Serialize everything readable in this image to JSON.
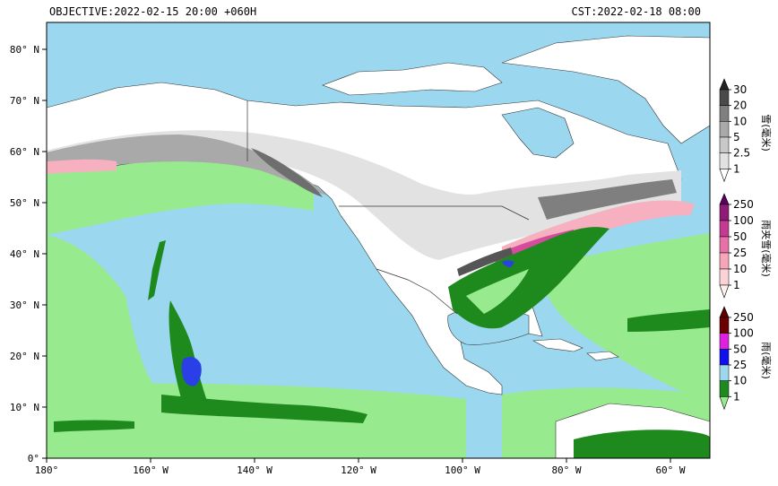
{
  "header": {
    "left": "OBJECTIVE:2022-02-15 20:00 +060H",
    "right": "CST:2022-02-18 08:00"
  },
  "axes": {
    "lat_ticks": [
      "80° N",
      "70° N",
      "60° N",
      "50° N",
      "40° N",
      "30° N",
      "20° N",
      "10° N",
      "0°"
    ],
    "lon_ticks": [
      "180°",
      "160° W",
      "140° W",
      "120° W",
      "100° W",
      "80° W",
      "60° W"
    ]
  },
  "colors": {
    "ocean": "#9bd8f0",
    "land": "#ffffff",
    "rain_light": "#97ea8d",
    "rain_mod": "#1e8a1e",
    "rain_heavy": "#2a3fe6",
    "sleet": "#f6b0bf",
    "sleet_heavy": "#d64b9e",
    "snow_light": "#e2e2e2",
    "snow_mod": "#a9a9a9",
    "snow_heavy": "#6e6e6e"
  },
  "legend": {
    "snow": {
      "title": "雪(毫米)",
      "labels": [
        "30",
        "20",
        "10",
        "5",
        "2.5",
        "1"
      ],
      "colors": [
        "#ffffff",
        "#e2e2e2",
        "#c8c8c8",
        "#a9a9a9",
        "#7f7f7f",
        "#4a4a4a"
      ],
      "top_color": "#222222"
    },
    "sleet": {
      "title": "雨夹雪(毫米)",
      "labels": [
        "250",
        "100",
        "50",
        "25",
        "10",
        "1"
      ],
      "colors": [
        "#fff0f0",
        "#fbd2d6",
        "#f6a6b8",
        "#e870a8",
        "#c43a92",
        "#8f1a78"
      ],
      "top_color": "#5a0060"
    },
    "rain": {
      "title": "雨(毫米)",
      "labels": [
        "250",
        "100",
        "50",
        "25",
        "10",
        "1"
      ],
      "colors": [
        "#97ea8d",
        "#1e8a1e",
        "#9bd8f0",
        "#1010ee",
        "#e020e0",
        "#6a0000"
      ],
      "top_color": "#5a0000"
    }
  }
}
